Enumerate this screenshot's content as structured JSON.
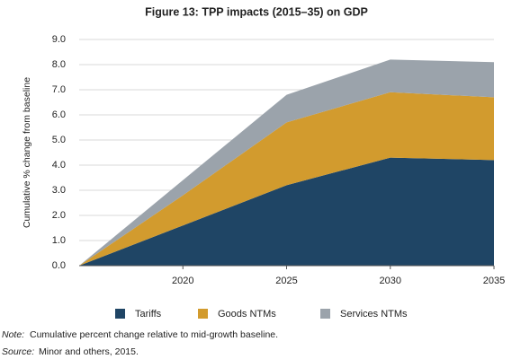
{
  "chart_data": {
    "type": "stacked-area",
    "title": "Figure 13: TPP impacts (2015–35) on GDP",
    "ylabel": "Cumulative % change from baseline",
    "x": [
      2015,
      2020,
      2025,
      2030,
      2035
    ],
    "xlim": [
      2015,
      2035
    ],
    "xticks": [
      2020,
      2025,
      2030,
      2035
    ],
    "ylim": [
      0,
      9
    ],
    "yticks": [
      {
        "value": 0,
        "label": "0.0"
      },
      {
        "value": 1,
        "label": "1.0"
      },
      {
        "value": 2,
        "label": "2.0"
      },
      {
        "value": 3,
        "label": "3.0"
      },
      {
        "value": 4,
        "label": "4.0"
      },
      {
        "value": 5,
        "label": "5.0"
      },
      {
        "value": 6,
        "label": "6.0"
      },
      {
        "value": 7,
        "label": "7.0"
      },
      {
        "value": 8,
        "label": "8.0"
      },
      {
        "value": 9,
        "label": "9.0"
      }
    ],
    "grid": true,
    "legend": "bottom",
    "series": [
      {
        "name": "Tariffs",
        "color": "#1f4565",
        "values": [
          0,
          1.6,
          3.2,
          4.3,
          4.2
        ]
      },
      {
        "name": "Goods NTMs",
        "color": "#d29b2e",
        "values": [
          0,
          1.2,
          2.5,
          2.6,
          2.5
        ]
      },
      {
        "name": "Services NTMs",
        "color": "#9ba3ab",
        "values": [
          0,
          0.6,
          1.1,
          1.3,
          1.4
        ]
      }
    ],
    "note_label": "Note:",
    "note": "Cumulative percent change relative to mid-growth baseline.",
    "source_label": "Source:",
    "source": "Minor and others, 2015."
  }
}
